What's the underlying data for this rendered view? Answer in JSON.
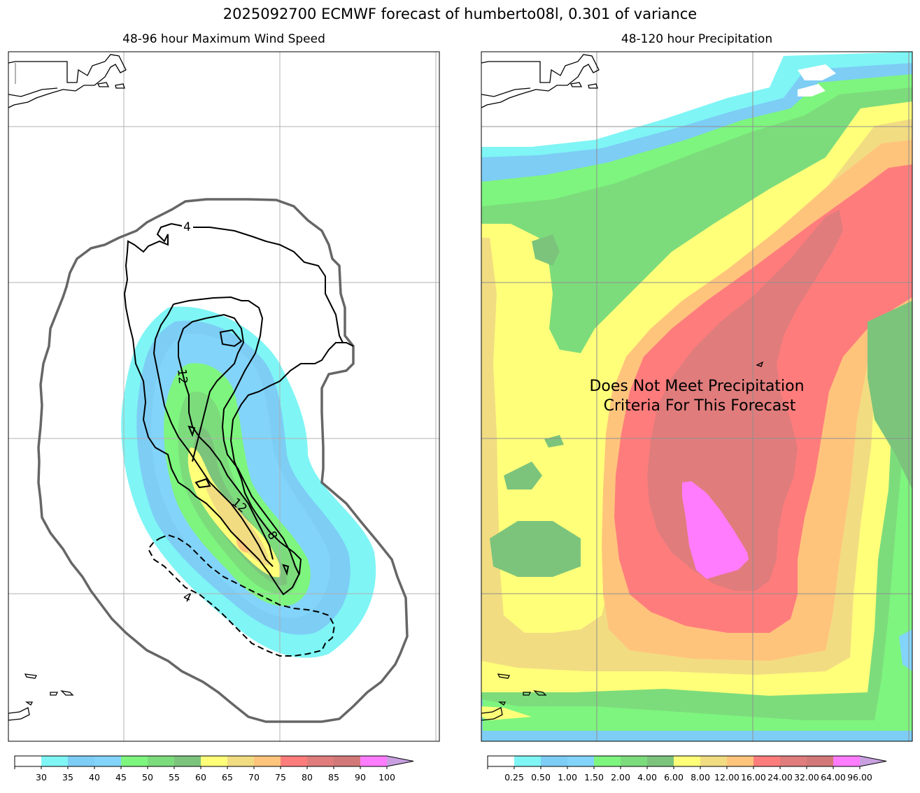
{
  "title": "2025092700 ECMWF forecast of humberto08l, 0.301 of variance",
  "panels": [
    {
      "title": "48-96 hour Maximum Wind Speed",
      "contour_labels": [
        "4",
        "12",
        "12",
        "8",
        "4"
      ],
      "colorbar": {
        "ticks": [
          "30",
          "35",
          "40",
          "45",
          "50",
          "55",
          "60",
          "65",
          "70",
          "75",
          "80",
          "85",
          "90",
          "100"
        ],
        "colors": [
          "#ffffff",
          "#7ff5f5",
          "#7dcdf5",
          "#82d4fa",
          "#7ef57e",
          "#7cdc7c",
          "#7cc47c",
          "#ffff7a",
          "#f2dc82",
          "#ffc47c",
          "#ff7c7c",
          "#e07c7c",
          "#d27878",
          "#ff7cff",
          "#c8a0e0"
        ]
      }
    },
    {
      "title": "48-120 hour Precipitation",
      "message": "Does Not Meet Precipitation\nCriteria For This Forecast",
      "message_line1": "Does Not Meet Precipitation",
      "message_line2": "Criteria For This Forecast",
      "colorbar": {
        "ticks": [
          "0.25",
          "0.50",
          "1.00",
          "1.50",
          "2.00",
          "4.00",
          "6.00",
          "8.00",
          "12.00",
          "16.00",
          "24.00",
          "32.00",
          "64.00",
          "96.00"
        ],
        "colors": [
          "#ffffff",
          "#7ff5f5",
          "#7dcdf5",
          "#82d4fa",
          "#7ef57e",
          "#7cdc7c",
          "#7cc47c",
          "#ffff7a",
          "#f2dc82",
          "#ffc47c",
          "#ff7c7c",
          "#e07c7c",
          "#d27878",
          "#ff7cff",
          "#c8a0e0"
        ]
      }
    }
  ]
}
